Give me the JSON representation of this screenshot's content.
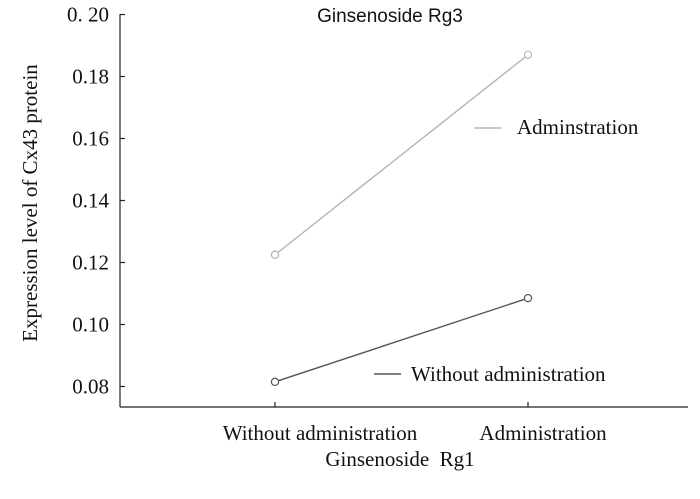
{
  "chart_data": {
    "type": "line",
    "title": "Ginsenoside Rg3",
    "xlabel": "Ginsenoside  Rg1",
    "ylabel": "Expression level of Cx43 protein",
    "categories": [
      "Without administration",
      "Administration"
    ],
    "y_tick_labels": [
      "0.08",
      "0.10",
      "0.12",
      "0.14",
      "0.16",
      "0.18",
      "0. 20"
    ],
    "ylim": [
      0.075,
      0.2
    ],
    "grid": false,
    "series": [
      {
        "name": "Adminstration",
        "values": [
          0.1225,
          0.187
        ],
        "color": "#b5b5b5"
      },
      {
        "name": "Without administration",
        "values": [
          0.0815,
          0.1085
        ],
        "color": "#555555"
      }
    ]
  }
}
